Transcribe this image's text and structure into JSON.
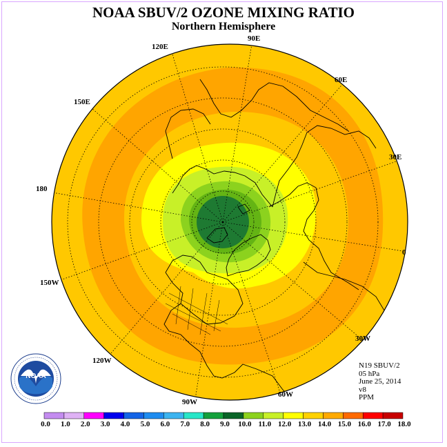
{
  "title": "NOAA SBUV/2 OZONE MIXING RATIO",
  "subtitle": "Northern Hemisphere",
  "longitude_labels": {
    "deg90e": "90E",
    "deg120e": "120E",
    "deg60e": "60E",
    "deg150e": "150E",
    "deg30e": "30E",
    "deg180": "180",
    "deg0": "0",
    "deg150w": "150W",
    "deg30w": "30W",
    "deg120w": "120W",
    "deg60w": "60W",
    "deg90w": "90W"
  },
  "info": {
    "satellite": "N19 SBUV/2",
    "pressure": "05 hPa",
    "date": "June 25, 2014",
    "version": "v8",
    "units": "PPM"
  },
  "logo": {
    "text": "NOAA",
    "ring_text": "NATIONAL OCEANIC AND ATMOSPHERIC ADMINISTRATION · U.S. DEPARTMENT OF COMMERCE"
  },
  "colorbar": {
    "labels": [
      "0.0",
      "1.0",
      "2.0",
      "3.0",
      "4.0",
      "5.0",
      "6.0",
      "7.0",
      "8.0",
      "9.0",
      "10.0",
      "11.0",
      "12.0",
      "13.0",
      "14.0",
      "15.0",
      "16.0",
      "17.0",
      "18.0"
    ],
    "colors": [
      "#c48cf0",
      "#dfb2f5",
      "#ff00ff",
      "#0000ee",
      "#1464e6",
      "#1e8cf0",
      "#3cb4f0",
      "#28e6c8",
      "#14a03c",
      "#0a6428",
      "#8cd21e",
      "#c8f028",
      "#ffff00",
      "#ffd200",
      "#ffaa00",
      "#ff6a00",
      "#ff0000",
      "#c80000",
      "#8c5a3c"
    ]
  },
  "map": {
    "bands": [
      {
        "value_ppm": 13.5,
        "color": "#ffc800"
      },
      {
        "value_ppm": 14.5,
        "color": "#ffa500"
      },
      {
        "value_ppm": 13.5,
        "color": "#ffc800"
      },
      {
        "value_ppm": 12.5,
        "color": "#ffff00"
      },
      {
        "value_ppm": 11.5,
        "color": "#c8f028"
      },
      {
        "value_ppm": 10.5,
        "color": "#8cd21e"
      },
      {
        "value_ppm": 9.5,
        "color": "#1e7a32"
      }
    ]
  }
}
